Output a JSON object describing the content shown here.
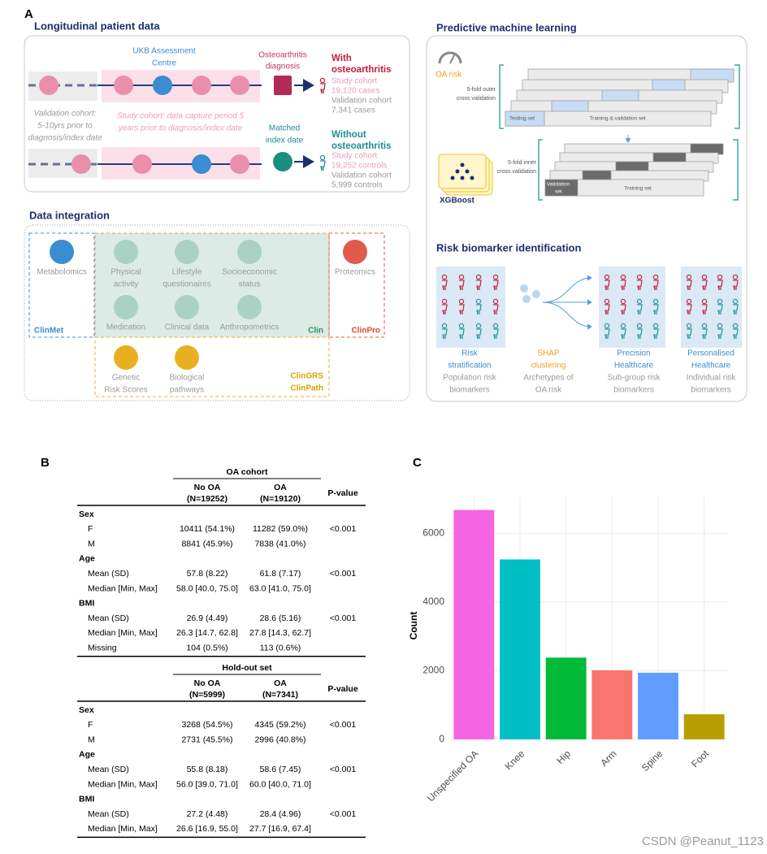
{
  "panel_labels": [
    "A",
    "B",
    "C"
  ],
  "longitudinal": {
    "title": "Longitudinal patient data",
    "ukb_centre": [
      "UKB Assessment",
      "Centre"
    ],
    "diagnosis": [
      "Osteoarthritis",
      "diagnosis"
    ],
    "with_oa": {
      "heading": [
        "With",
        "osteoarthritis"
      ],
      "study": [
        "Study cohort",
        "19,120 cases"
      ],
      "validation": [
        "Validation cohort",
        "7,341 cases"
      ]
    },
    "validation_note": [
      "Validation cohort:",
      "5-10yrs prior to",
      "diagnosis/index date"
    ],
    "study_note": [
      "Study cohort: data capture period 5",
      "years prior to diagnosis/index date"
    ],
    "index_date": [
      "Matched",
      "index date"
    ],
    "without_oa": {
      "heading": [
        "Without",
        "osteoarthritis"
      ],
      "study": [
        "Study cohort",
        "19,252 controls"
      ],
      "validation": [
        "Validation cohort",
        "5,999 controls"
      ]
    }
  },
  "integration": {
    "title": "Data integration",
    "sources": [
      [
        "Metabolomics"
      ],
      [
        "Physical",
        "activity"
      ],
      [
        "Lifestyle",
        "questionaires"
      ],
      [
        "Socioeconomic",
        "status"
      ],
      [
        "Medication"
      ],
      [
        "Clinical data"
      ],
      [
        "Anthropometrics"
      ],
      [
        "Proteomics"
      ],
      [
        "Genetic",
        "Risk Scores"
      ],
      [
        "Biological",
        "pathways"
      ]
    ],
    "groups": {
      "clinmet": "ClinMet",
      "clin": "Clin",
      "clinpro": "ClinPro",
      "clingrs": "ClinGRS",
      "clinpath": "ClinPath"
    }
  },
  "ml": {
    "title": "Predictive machine learning",
    "oa_risk": "OA risk",
    "outer_cv": [
      "5-fold outer",
      "cross validation"
    ],
    "testing_set": "Testing set",
    "train_val_set": "Training & validation set",
    "inner_cv": [
      "5-fold inner",
      "cross validation"
    ],
    "xgboost": "XGBoost",
    "validation_set": [
      "Validation",
      "set"
    ],
    "training_set": "Training set"
  },
  "biomarkers": {
    "title": "Risk biomarker identification",
    "steps": [
      {
        "name": [
          "Risk",
          "stratification"
        ],
        "desc": [
          "Population risk",
          "biomarkers"
        ]
      },
      {
        "name": [
          "SHAP",
          "clustering"
        ],
        "desc": [
          "Archetypes of",
          "OA risk"
        ]
      },
      {
        "name": [
          "Precision",
          "Healthcare"
        ],
        "desc": [
          "Sub-group risk",
          "biomarkers"
        ]
      },
      {
        "name": [
          "Personalised",
          "Healthcare"
        ],
        "desc": [
          "Individual risk",
          "biomarkers"
        ]
      }
    ]
  },
  "table": {
    "blocks": [
      {
        "group_header": "OA cohort",
        "columns": [
          [
            "No OA",
            "(N=19252)"
          ],
          [
            "OA",
            "(N=19120)"
          ]
        ],
        "p_header": "P-value",
        "rows": [
          {
            "section": "Sex"
          },
          {
            "label": "F",
            "values": [
              "10411 (54.1%)",
              "11282 (59.0%)"
            ],
            "p": "<0.001"
          },
          {
            "label": "M",
            "values": [
              "8841 (45.9%)",
              "7838 (41.0%)"
            ]
          },
          {
            "section": "Age"
          },
          {
            "label": "Mean (SD)",
            "values": [
              "57.8 (8.22)",
              "61.8 (7.17)"
            ],
            "p": "<0.001"
          },
          {
            "label": "Median [Min, Max]",
            "values": [
              "58.0 [40.0, 75.0]",
              "63.0 [41.0, 75.0]"
            ]
          },
          {
            "section": "BMI"
          },
          {
            "label": "Mean (SD)",
            "values": [
              "26.9 (4.49)",
              "28.6 (5.16)"
            ],
            "p": "<0.001"
          },
          {
            "label": "Median [Min, Max]",
            "values": [
              "26.3 [14.7, 62.8]",
              "27.8 [14.3, 62.7]"
            ]
          },
          {
            "label": "Missing",
            "values": [
              "104 (0.5%)",
              "113 (0.6%)"
            ]
          }
        ]
      },
      {
        "group_header": "Hold-out set",
        "columns": [
          [
            "No OA",
            "(N=5999)"
          ],
          [
            "OA",
            "(N=7341)"
          ]
        ],
        "p_header": "P-value",
        "rows": [
          {
            "section": "Sex"
          },
          {
            "label": "F",
            "values": [
              "3268 (54.5%)",
              "4345 (59.2%)"
            ],
            "p": "<0.001"
          },
          {
            "label": "M",
            "values": [
              "2731 (45.5%)",
              "2996 (40.8%)"
            ]
          },
          {
            "section": "Age"
          },
          {
            "label": "Mean (SD)",
            "values": [
              "55.8 (8.18)",
              "58.6 (7.45)"
            ],
            "p": "<0.001"
          },
          {
            "label": "Median [Min, Max]",
            "values": [
              "56.0 [39.0, 71.0]",
              "60.0 [40.0, 71.0]"
            ]
          },
          {
            "section": "BMI"
          },
          {
            "label": "Mean (SD)",
            "values": [
              "27.2 (4.48)",
              "28.4 (4.96)"
            ],
            "p": "<0.001"
          },
          {
            "label": "Median [Min, Max]",
            "values": [
              "26.6 [16.9, 55.0]",
              "27.7 [16.9, 67.4]"
            ]
          }
        ]
      }
    ]
  },
  "chart_data": {
    "type": "bar",
    "y_label": "Count",
    "categories": [
      "Unspecified OA",
      "Knee",
      "Hip",
      "Arm",
      "Spine",
      "Foot"
    ],
    "values": [
      6680,
      5240,
      2380,
      2010,
      1940,
      730
    ],
    "colors": [
      "#f564e3",
      "#00bfc4",
      "#00ba38",
      "#f8766d",
      "#619cff",
      "#b79f00"
    ],
    "ylim": [
      -50,
      7050
    ],
    "yticks": [
      0,
      2000,
      4000,
      6000
    ],
    "grid": true
  },
  "watermark": "CSDN @Peanut_1123"
}
